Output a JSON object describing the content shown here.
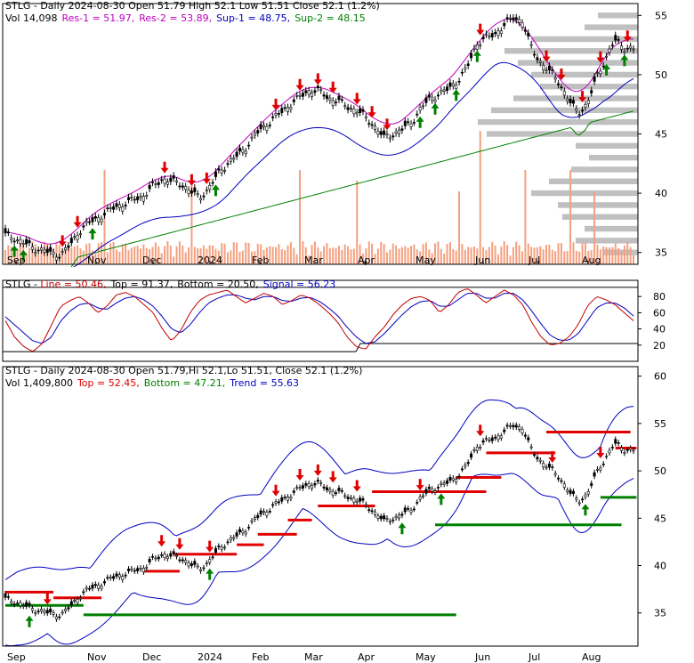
{
  "chart_data": [
    {
      "type": "candlestick",
      "title_line1": "STLG - Daily 2024-08-30 Open 51.79  High 52.1  Low 51.51  Close 52.1 (1.2%)",
      "legend": [
        {
          "label": "Vol 14,098",
          "color": "#000000"
        },
        {
          "label": "Res-1 = 51.97,",
          "color": "#c000c0"
        },
        {
          "label": "Res-2 = 53.89,",
          "color": "#c000c0"
        },
        {
          "label": "Sup-1 = 48.75,",
          "color": "#0000c0"
        },
        {
          "label": "Sup-2 = 48.15",
          "color": "#008000"
        }
      ],
      "x_ticks": [
        "Sep",
        "Nov",
        "Dec",
        "2024",
        "Feb",
        "Mar",
        "Apr",
        "May",
        "Jun",
        "Jul",
        "Aug"
      ],
      "y_ticks": [
        35,
        40,
        45,
        50,
        55
      ],
      "ylim": [
        34,
        56
      ],
      "close_series": [
        36.5,
        36.2,
        35.8,
        35.4,
        35.2,
        34.9,
        34.8,
        35.6,
        36.8,
        37.5,
        37.9,
        38.4,
        38.9,
        39.1,
        39.5,
        39.8,
        40.6,
        41.2,
        41.0,
        40.8,
        40.2,
        39.6,
        40.4,
        41.6,
        42.5,
        43.1,
        43.8,
        44.9,
        45.6,
        46.3,
        46.9,
        47.6,
        48.2,
        48.7,
        48.6,
        48.0,
        47.8,
        47.3,
        47.0,
        46.4,
        45.6,
        44.7,
        45.0,
        45.4,
        46.0,
        47.2,
        48.0,
        48.4,
        48.8,
        49.5,
        50.6,
        52.6,
        53.1,
        53.4,
        54.2,
        54.8,
        54.5,
        52.1,
        51.0,
        50.2,
        49.3,
        47.8,
        46.8,
        47.5,
        49.8,
        51.4,
        52.9,
        52.3,
        52.1
      ],
      "colors": {
        "up_arrow": "#008000",
        "down_arrow": "#e00000",
        "volume": "#f4a080",
        "res1": "#c000c0",
        "sup1": "#0000c0",
        "sup2": "#008000",
        "profile": "#c0c0c0"
      }
    },
    {
      "type": "line",
      "title_parts": [
        {
          "label": "STLG - ",
          "color": "#000000"
        },
        {
          "label": "Line = 50.46,",
          "color": "#c00000"
        },
        {
          "label": "Top = 91.37,",
          "color": "#000000"
        },
        {
          "label": "Bottom = 20.50,",
          "color": "#000000"
        },
        {
          "label": "Signal = 56.23",
          "color": "#0000c0"
        }
      ],
      "y_ticks": [
        20,
        40,
        60,
        80
      ],
      "ylim": [
        0,
        100
      ],
      "top": 91.37,
      "bottom": 20.5,
      "line_series": [
        50,
        30,
        18,
        12,
        22,
        45,
        68,
        75,
        80,
        72,
        60,
        68,
        82,
        85,
        80,
        70,
        60,
        40,
        25,
        38,
        60,
        75,
        82,
        85,
        88,
        80,
        72,
        78,
        84,
        80,
        70,
        75,
        82,
        78,
        70,
        60,
        48,
        30,
        18,
        15,
        30,
        42,
        58,
        70,
        78,
        80,
        75,
        60,
        70,
        85,
        90,
        82,
        72,
        80,
        88,
        82,
        70,
        48,
        30,
        20,
        22,
        30,
        45,
        68,
        80,
        76,
        70,
        60,
        50
      ],
      "signal_series": [
        55,
        45,
        35,
        25,
        22,
        30,
        50,
        62,
        70,
        72,
        66,
        64,
        72,
        78,
        80,
        76,
        68,
        55,
        40,
        35,
        45,
        60,
        72,
        78,
        82,
        82,
        78,
        76,
        80,
        80,
        75,
        74,
        78,
        79,
        74,
        66,
        56,
        42,
        30,
        22,
        24,
        34,
        46,
        58,
        68,
        74,
        75,
        68,
        68,
        76,
        84,
        84,
        78,
        78,
        84,
        84,
        76,
        62,
        46,
        32,
        26,
        26,
        34,
        50,
        66,
        72,
        72,
        66,
        56
      ]
    },
    {
      "type": "candlestick",
      "title_parts": [
        {
          "label": "STLG - Daily 2024-08-30 Open 51.79,Hi 52.1,Lo 51.51,  Close 52.1 (1.2%)",
          "color": "#000000"
        }
      ],
      "legend": [
        {
          "label": "Vol 1,409,800",
          "color": "#000000"
        },
        {
          "label": "Top = 52.45,",
          "color": "#e00000"
        },
        {
          "label": "Bottom = 47.21,",
          "color": "#008000"
        },
        {
          "label": "Trend = 55.63",
          "color": "#0000c0"
        }
      ],
      "x_ticks": [
        "Sep",
        "Nov",
        "Dec",
        "2024",
        "Feb",
        "Mar",
        "Apr",
        "May",
        "Jun",
        "Jul",
        "Aug"
      ],
      "y_ticks": [
        35,
        40,
        45,
        50,
        55,
        60
      ],
      "ylim": [
        31.5,
        61
      ]
    }
  ]
}
